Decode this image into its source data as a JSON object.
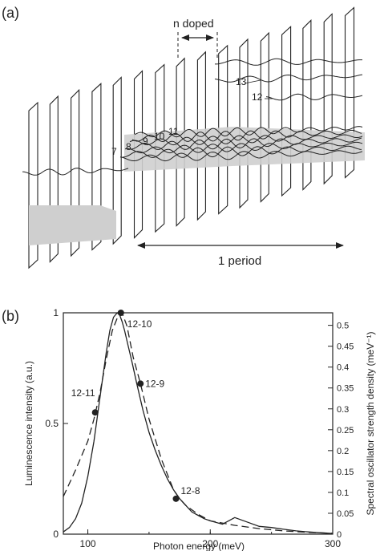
{
  "panel_a": {
    "label": "(a)",
    "n_doped_label": "n doped",
    "period_label": "1 period",
    "state_labels": [
      "7",
      "8",
      "9",
      "10",
      "11",
      "12",
      "13"
    ]
  },
  "panel_b": {
    "label": "(b)",
    "chart_data": {
      "type": "line",
      "xlabel": "Photon energy (meV)",
      "ylabel_left": "Luminescence intensity (a.u.)",
      "ylabel_right": "Spectral oscillator strength density (meV⁻¹)",
      "xlim": [
        80,
        300
      ],
      "ylim_left": [
        0,
        1
      ],
      "ylim_right": [
        0,
        0.53
      ],
      "x_ticks": [
        "100",
        "200",
        "300"
      ],
      "y_left_ticks": [
        "0",
        "0.5",
        "1"
      ],
      "y_right_ticks": [
        "0",
        "0.05",
        "0.1",
        "0.15",
        "0.2",
        "0.25",
        "0.3",
        "0.35",
        "0.4",
        "0.45",
        "0.5"
      ],
      "series": [
        {
          "style": "solid",
          "x": [
            80,
            85,
            90,
            95,
            100,
            105,
            110,
            115,
            118,
            121,
            124,
            126,
            128,
            130,
            133,
            136,
            140,
            145,
            150,
            155,
            160,
            165,
            170,
            175,
            180,
            185,
            190,
            195,
            200,
            210,
            220,
            230,
            240,
            250,
            260,
            270,
            280,
            290,
            300
          ],
          "y": [
            0.01,
            0.03,
            0.07,
            0.14,
            0.26,
            0.42,
            0.62,
            0.82,
            0.92,
            0.98,
            1.0,
            0.99,
            0.96,
            0.92,
            0.85,
            0.78,
            0.68,
            0.56,
            0.46,
            0.38,
            0.31,
            0.25,
            0.2,
            0.16,
            0.13,
            0.1,
            0.085,
            0.07,
            0.06,
            0.045,
            0.075,
            0.055,
            0.035,
            0.03,
            0.022,
            0.015,
            0.01,
            0.006,
            0.003
          ]
        },
        {
          "style": "dashed",
          "x": [
            80,
            90,
            100,
            105,
            110,
            115,
            120,
            125,
            128,
            132,
            137,
            143,
            150,
            160,
            170,
            175,
            180,
            190,
            200,
            220,
            240,
            260,
            280,
            300
          ],
          "y": [
            0.17,
            0.29,
            0.42,
            0.52,
            0.64,
            0.79,
            0.92,
            0.99,
            1.0,
            0.94,
            0.8,
            0.68,
            0.52,
            0.34,
            0.2,
            0.16,
            0.13,
            0.09,
            0.06,
            0.04,
            0.025,
            0.015,
            0.008,
            0.004
          ]
        }
      ],
      "points": [
        {
          "label": "12-11",
          "x": 106,
          "y": 0.55
        },
        {
          "label": "12-10",
          "x": 127,
          "y": 1.0
        },
        {
          "label": "12-9",
          "x": 143,
          "y": 0.68
        },
        {
          "label": "12-8",
          "x": 172,
          "y": 0.16
        }
      ]
    }
  }
}
